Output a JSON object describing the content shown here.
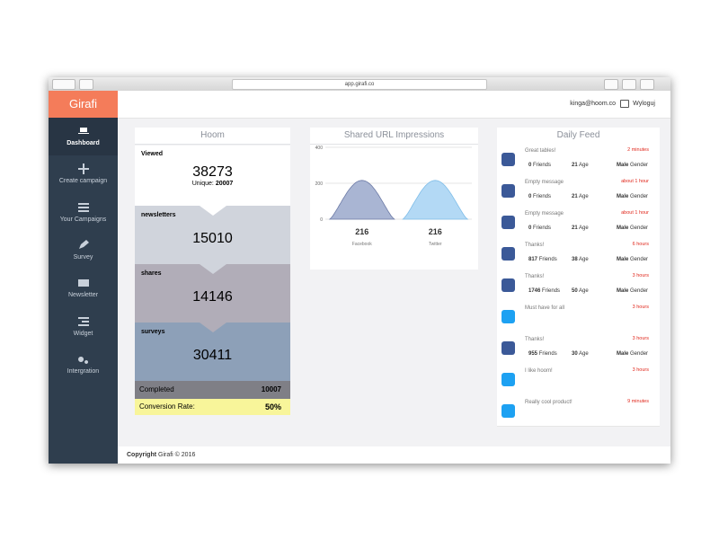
{
  "browser": {
    "url": "app.girafi.co"
  },
  "sidebar": {
    "logo": "Girafi",
    "items": [
      "Dashboard",
      "Create campaign",
      "Your Campaigns",
      "Survey",
      "Newsletter",
      "Widget",
      "Intergration"
    ]
  },
  "topbar": {
    "user": "kinga@hoom.co",
    "logout": "Wyloguj"
  },
  "funnel": {
    "title": "Hoom",
    "viewed_label": "Viewed",
    "viewed": 38273,
    "unique_label": "Unique:",
    "unique": 20007,
    "stages": [
      {
        "label": "newsletters",
        "value": 15010
      },
      {
        "label": "shares",
        "value": 14146
      },
      {
        "label": "surveys",
        "value": 30411
      }
    ],
    "completed_label": "Completed",
    "completed": 10007,
    "conversion_label": "Conversion Rate:",
    "conversion": "50%"
  },
  "impressions": {
    "type": "area",
    "title": "Shared URL Impressions",
    "categories": [
      "Facebook",
      "Twitter"
    ],
    "values": [
      216,
      216
    ],
    "colors": [
      "#a9b5d3",
      "#b3d9f5"
    ],
    "ylim": [
      0,
      400
    ],
    "yticks": [
      0,
      200,
      400
    ],
    "grid": true
  },
  "feed": {
    "title": "Daily Feed",
    "items": [
      {
        "source": "facebook",
        "message": "Great tables!",
        "time": "2 minutes",
        "stats": [
          {
            "value": 0,
            "label": "Friends"
          },
          {
            "value": 21,
            "label": "Age"
          },
          {
            "value": "Male",
            "label": "Gender"
          }
        ]
      },
      {
        "source": "facebook",
        "message": "Empty message",
        "time": "about 1 hour",
        "stats": [
          {
            "value": 0,
            "label": "Friends"
          },
          {
            "value": 21,
            "label": "Age"
          },
          {
            "value": "Male",
            "label": "Gender"
          }
        ]
      },
      {
        "source": "facebook",
        "message": "Empty message",
        "time": "about 1 hour",
        "stats": [
          {
            "value": 0,
            "label": "Friends"
          },
          {
            "value": 21,
            "label": "Age"
          },
          {
            "value": "Male",
            "label": "Gender"
          }
        ]
      },
      {
        "source": "facebook",
        "message": "Thanks!",
        "time": "6 hours",
        "stats": [
          {
            "value": 817,
            "label": "Friends"
          },
          {
            "value": 38,
            "label": "Age"
          },
          {
            "value": "Male",
            "label": "Gender"
          }
        ]
      },
      {
        "source": "facebook",
        "message": "Thanks!",
        "time": "3 hours",
        "stats": [
          {
            "value": 1746,
            "label": "Friends"
          },
          {
            "value": 50,
            "label": "Age"
          },
          {
            "value": "Male",
            "label": "Gender"
          }
        ]
      },
      {
        "source": "twitter",
        "message": "Must have for all",
        "time": "3 hours"
      },
      {
        "source": "facebook",
        "message": "Thanks!",
        "time": "3 hours",
        "stats": [
          {
            "value": 955,
            "label": "Friends"
          },
          {
            "value": 30,
            "label": "Age"
          },
          {
            "value": "Male",
            "label": "Gender"
          }
        ]
      },
      {
        "source": "twitter",
        "message": "I like hoom!",
        "time": "3 hours"
      },
      {
        "source": "twitter",
        "message": "Really cool product!",
        "time": "9 minutes"
      }
    ]
  },
  "footer": {
    "label": "Copyright",
    "text": "Girafi © 2016"
  }
}
